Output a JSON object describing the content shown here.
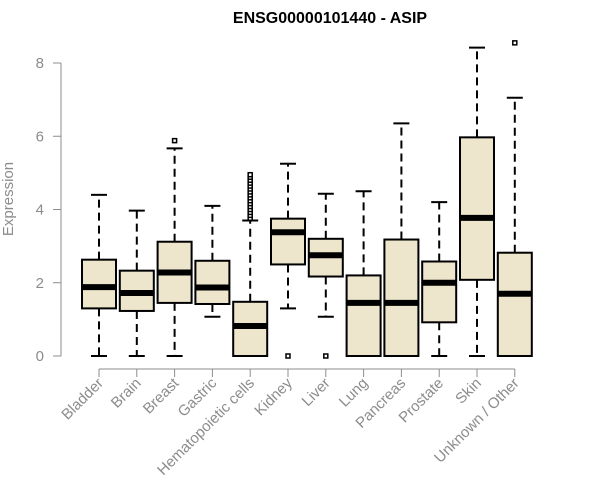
{
  "chart_data": {
    "type": "boxplot",
    "title": "ENSG00000101440 - ASIP",
    "xlabel": "",
    "ylabel": "Expression",
    "ylim": [
      0,
      8.6
    ],
    "yticks": [
      0,
      2,
      4,
      6,
      8
    ],
    "grid": false,
    "legend": "none",
    "box_fill": "#ede6cc",
    "box_stroke": "#000000",
    "axis_color": "#8c8c8c",
    "categories": [
      "Bladder",
      "Brain",
      "Breast",
      "Gastric",
      "Hematopoietic cells",
      "Kidney",
      "Liver",
      "Lung",
      "Pancreas",
      "Prostate",
      "Skin",
      "Unknown / Other"
    ],
    "boxes": [
      {
        "whisker_low": 0.0,
        "q1": 1.3,
        "median": 1.88,
        "q3": 2.63,
        "whisker_high": 4.4,
        "outliers": []
      },
      {
        "whisker_low": 0.0,
        "q1": 1.23,
        "median": 1.72,
        "q3": 2.33,
        "whisker_high": 3.97,
        "outliers": []
      },
      {
        "whisker_low": 0.0,
        "q1": 1.45,
        "median": 2.28,
        "q3": 3.12,
        "whisker_high": 5.67,
        "outliers": [
          5.88
        ]
      },
      {
        "whisker_low": 1.07,
        "q1": 1.42,
        "median": 1.87,
        "q3": 2.6,
        "whisker_high": 4.1,
        "outliers": []
      },
      {
        "whisker_low": 0.0,
        "q1": 0.0,
        "median": 0.82,
        "q3": 1.48,
        "whisker_high": 3.7,
        "outliers": [
          3.76,
          3.84,
          3.92,
          4.0,
          4.08,
          4.16,
          4.24,
          4.32,
          4.4,
          4.48,
          4.56,
          4.64,
          4.72,
          4.8,
          4.88,
          4.95
        ]
      },
      {
        "whisker_low": 1.3,
        "q1": 2.5,
        "median": 3.38,
        "q3": 3.75,
        "whisker_high": 5.25,
        "outliers": [
          0.0
        ]
      },
      {
        "whisker_low": 1.07,
        "q1": 2.17,
        "median": 2.75,
        "q3": 3.2,
        "whisker_high": 4.43,
        "outliers": [
          0.0
        ]
      },
      {
        "whisker_low": 0.0,
        "q1": 0.0,
        "median": 1.45,
        "q3": 2.2,
        "whisker_high": 4.5,
        "outliers": []
      },
      {
        "whisker_low": 0.0,
        "q1": 0.0,
        "median": 1.45,
        "q3": 3.18,
        "whisker_high": 6.35,
        "outliers": []
      },
      {
        "whisker_low": 0.0,
        "q1": 0.92,
        "median": 2.0,
        "q3": 2.58,
        "whisker_high": 4.2,
        "outliers": []
      },
      {
        "whisker_low": 0.0,
        "q1": 2.08,
        "median": 3.77,
        "q3": 5.97,
        "whisker_high": 8.42,
        "outliers": []
      },
      {
        "whisker_low": 0.0,
        "q1": 0.0,
        "median": 1.7,
        "q3": 2.82,
        "whisker_high": 7.05,
        "outliers": [
          8.55
        ]
      }
    ]
  }
}
